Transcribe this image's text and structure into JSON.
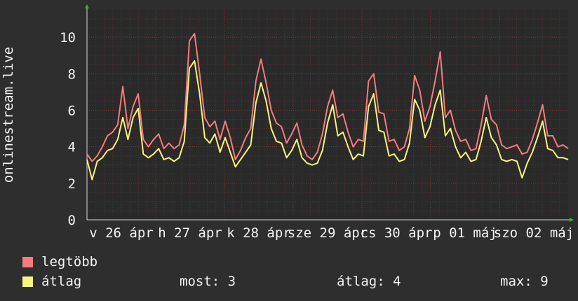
{
  "chart_data": {
    "type": "line",
    "ylabel": "onlinestream.live",
    "ylim": [
      0,
      11.5
    ],
    "yticks": [
      0,
      2,
      4,
      6,
      8,
      10
    ],
    "xticks": [
      "v 26 ápr",
      "h 27 ápr",
      "k 28 ápr",
      "sze 29 ápr",
      "cs 30 ápr",
      "p 01 máj",
      "szo 02 máj"
    ],
    "grid": true,
    "series": [
      {
        "name": "legtöbb",
        "color": "#f47c7c",
        "x_range": [
          0,
          7
        ],
        "values": [
          3.6,
          3.2,
          3.5,
          4.0,
          4.6,
          4.8,
          5.2,
          7.3,
          5.0,
          6.2,
          6.9,
          4.4,
          4.0,
          4.4,
          4.7,
          3.9,
          4.2,
          3.9,
          4.1,
          5.2,
          9.8,
          10.2,
          8.0,
          5.6,
          5.1,
          5.4,
          4.4,
          5.4,
          4.5,
          3.3,
          3.8,
          4.5,
          5.0,
          7.6,
          8.8,
          7.5,
          6.0,
          5.3,
          5.1,
          4.2,
          4.7,
          5.3,
          4.1,
          3.5,
          3.3,
          3.7,
          4.7,
          6.2,
          7.1,
          5.6,
          5.8,
          4.8,
          4.0,
          4.4,
          4.3,
          7.6,
          8.0,
          5.9,
          5.8,
          4.3,
          4.4,
          3.8,
          4.0,
          5.0,
          7.9,
          7.1,
          5.4,
          6.2,
          7.6,
          9.2,
          5.6,
          6.0,
          4.9,
          4.3,
          4.4,
          3.8,
          3.9,
          5.2,
          6.8,
          5.5,
          5.2,
          4.1,
          3.9,
          4.0,
          4.1,
          3.6,
          3.7,
          4.4,
          5.3,
          6.3,
          4.6,
          4.6,
          4.0,
          4.1,
          3.9
        ]
      },
      {
        "name": "átlag",
        "color": "#f8f47c",
        "x_range": [
          0,
          7
        ],
        "values": [
          3.3,
          2.2,
          3.2,
          3.4,
          3.8,
          3.9,
          4.4,
          5.6,
          4.4,
          5.6,
          6.1,
          3.6,
          3.4,
          3.6,
          3.9,
          3.3,
          3.4,
          3.2,
          3.4,
          4.3,
          8.3,
          8.7,
          6.9,
          4.5,
          4.2,
          4.7,
          3.7,
          4.5,
          3.7,
          2.9,
          3.3,
          3.7,
          4.1,
          6.4,
          7.5,
          6.5,
          5.0,
          4.3,
          4.2,
          3.4,
          3.8,
          4.4,
          3.4,
          3.1,
          3.0,
          3.1,
          3.8,
          5.3,
          6.3,
          4.6,
          4.8,
          4.0,
          3.3,
          3.6,
          3.5,
          6.2,
          6.9,
          4.9,
          4.8,
          3.5,
          3.6,
          3.2,
          3.3,
          4.2,
          6.6,
          6.0,
          4.5,
          5.1,
          6.3,
          7.1,
          4.6,
          5.0,
          4.0,
          3.4,
          3.7,
          3.2,
          3.3,
          4.3,
          5.6,
          4.5,
          4.1,
          3.3,
          3.2,
          3.3,
          3.2,
          2.3,
          3.1,
          3.7,
          4.5,
          5.4,
          3.9,
          3.8,
          3.4,
          3.4,
          3.3
        ]
      }
    ]
  },
  "legend": [
    {
      "label": "legtöbb",
      "color": "#f47c7c"
    },
    {
      "label": "átlag",
      "color": "#f8f47c"
    }
  ],
  "stats": {
    "now": "most: 3",
    "avg": "átlag: 4",
    "max": "max: 9"
  }
}
